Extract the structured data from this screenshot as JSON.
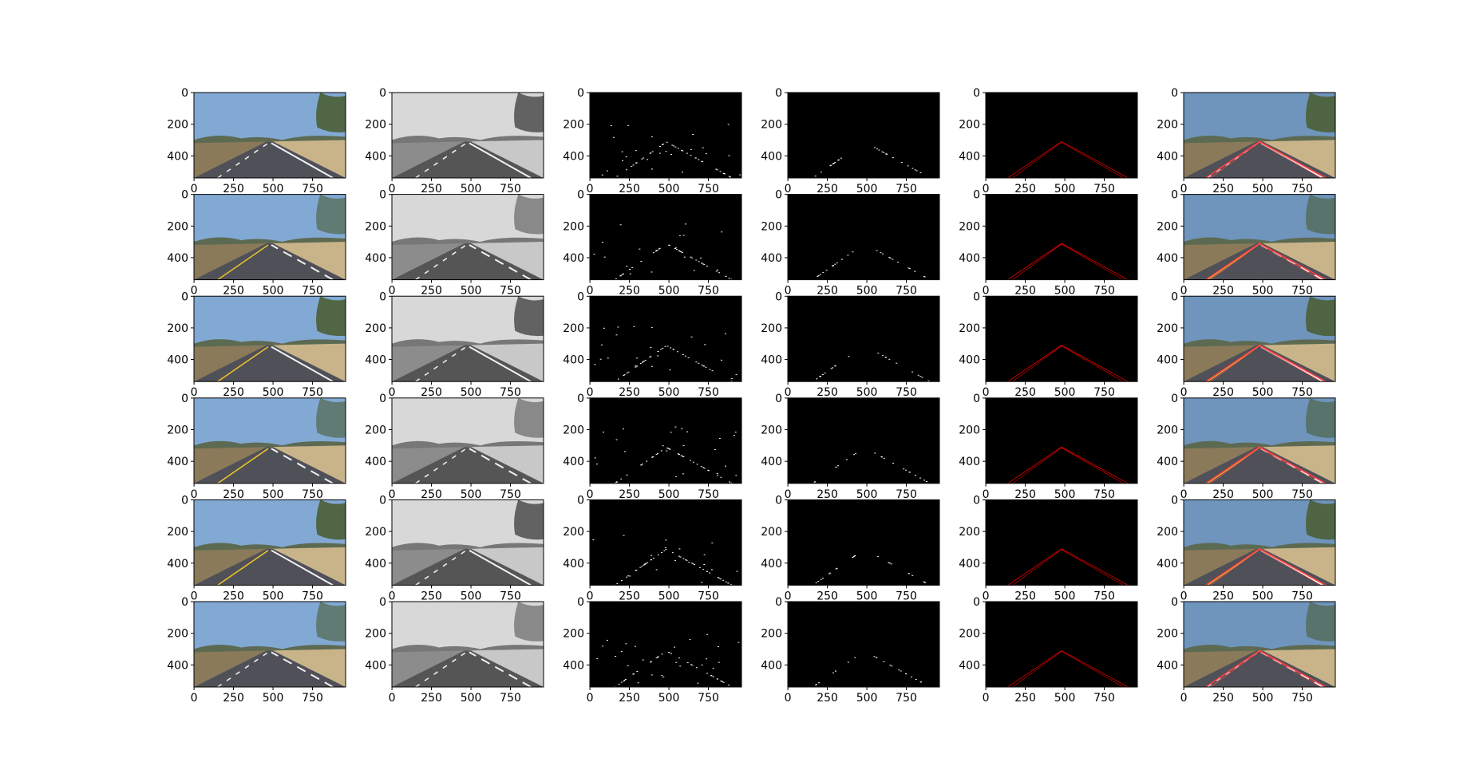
{
  "chart_data": [
    {
      "type": "image",
      "xlim": [
        -0.5,
        959.5
      ],
      "ylim": [
        539.5,
        -0.5
      ],
      "xticks": [
        0,
        250,
        500,
        750
      ],
      "yticks": [
        0,
        200,
        400
      ]
    },
    {
      "type": "image",
      "xlim": [
        -0.5,
        959.5
      ],
      "ylim": [
        539.5,
        -0.5
      ],
      "xticks": [
        0,
        250,
        500,
        750
      ],
      "yticks": [
        0,
        200,
        400
      ]
    },
    {
      "type": "image",
      "xlim": [
        -0.5,
        959.5
      ],
      "ylim": [
        539.5,
        -0.5
      ],
      "xticks": [
        0,
        250,
        500,
        750
      ],
      "yticks": [
        0,
        200,
        400
      ]
    },
    {
      "type": "image",
      "xlim": [
        -0.5,
        959.5
      ],
      "ylim": [
        539.5,
        -0.5
      ],
      "xticks": [
        0,
        250,
        500,
        750
      ],
      "yticks": [
        0,
        200,
        400
      ]
    },
    {
      "type": "image",
      "xlim": [
        -0.5,
        959.5
      ],
      "ylim": [
        539.5,
        -0.5
      ],
      "xticks": [
        0,
        250,
        500,
        750
      ],
      "yticks": [
        0,
        200,
        400
      ]
    },
    {
      "type": "image",
      "xlim": [
        -0.5,
        959.5
      ],
      "ylim": [
        539.5,
        -0.5
      ],
      "xticks": [
        0,
        250,
        500,
        750
      ],
      "yticks": [
        0,
        200,
        400
      ]
    },
    {
      "type": "image",
      "xlim": [
        -0.5,
        959.5
      ],
      "ylim": [
        539.5,
        -0.5
      ],
      "xticks": [
        0,
        250,
        500,
        750
      ],
      "yticks": [
        0,
        200,
        400
      ]
    },
    {
      "type": "image",
      "xlim": [
        -0.5,
        959.5
      ],
      "ylim": [
        539.5,
        -0.5
      ],
      "xticks": [
        0,
        250,
        500,
        750
      ],
      "yticks": [
        0,
        200,
        400
      ]
    },
    {
      "type": "image",
      "xlim": [
        -0.5,
        959.5
      ],
      "ylim": [
        539.5,
        -0.5
      ],
      "xticks": [
        0,
        250,
        500,
        750
      ],
      "yticks": [
        0,
        200,
        400
      ]
    },
    {
      "type": "image",
      "xlim": [
        -0.5,
        959.5
      ],
      "ylim": [
        539.5,
        -0.5
      ],
      "xticks": [
        0,
        250,
        500,
        750
      ],
      "yticks": [
        0,
        200,
        400
      ]
    },
    {
      "type": "image",
      "xlim": [
        -0.5,
        959.5
      ],
      "ylim": [
        539.5,
        -0.5
      ],
      "xticks": [
        0,
        250,
        500,
        750
      ],
      "yticks": [
        0,
        200,
        400
      ]
    },
    {
      "type": "image",
      "xlim": [
        -0.5,
        959.5
      ],
      "ylim": [
        539.5,
        -0.5
      ],
      "xticks": [
        0,
        250,
        500,
        750
      ],
      "yticks": [
        0,
        200,
        400
      ]
    },
    {
      "type": "image",
      "xlim": [
        -0.5,
        959.5
      ],
      "ylim": [
        539.5,
        -0.5
      ],
      "xticks": [
        0,
        250,
        500,
        750
      ],
      "yticks": [
        0,
        200,
        400
      ]
    },
    {
      "type": "image",
      "xlim": [
        -0.5,
        959.5
      ],
      "ylim": [
        539.5,
        -0.5
      ],
      "xticks": [
        0,
        250,
        500,
        750
      ],
      "yticks": [
        0,
        200,
        400
      ]
    },
    {
      "type": "image",
      "xlim": [
        -0.5,
        959.5
      ],
      "ylim": [
        539.5,
        -0.5
      ],
      "xticks": [
        0,
        250,
        500,
        750
      ],
      "yticks": [
        0,
        200,
        400
      ]
    },
    {
      "type": "image",
      "xlim": [
        -0.5,
        959.5
      ],
      "ylim": [
        539.5,
        -0.5
      ],
      "xticks": [
        0,
        250,
        500,
        750
      ],
      "yticks": [
        0,
        200,
        400
      ]
    },
    {
      "type": "image",
      "xlim": [
        -0.5,
        959.5
      ],
      "ylim": [
        539.5,
        -0.5
      ],
      "xticks": [
        0,
        250,
        500,
        750
      ],
      "yticks": [
        0,
        200,
        400
      ]
    },
    {
      "type": "image",
      "xlim": [
        -0.5,
        959.5
      ],
      "ylim": [
        539.5,
        -0.5
      ],
      "xticks": [
        0,
        250,
        500,
        750
      ],
      "yticks": [
        0,
        200,
        400
      ]
    },
    {
      "type": "image",
      "xlim": [
        -0.5,
        959.5
      ],
      "ylim": [
        539.5,
        -0.5
      ],
      "xticks": [
        0,
        250,
        500,
        750
      ],
      "yticks": [
        0,
        200,
        400
      ]
    },
    {
      "type": "image",
      "xlim": [
        -0.5,
        959.5
      ],
      "ylim": [
        539.5,
        -0.5
      ],
      "xticks": [
        0,
        250,
        500,
        750
      ],
      "yticks": [
        0,
        200,
        400
      ]
    },
    {
      "type": "image",
      "xlim": [
        -0.5,
        959.5
      ],
      "ylim": [
        539.5,
        -0.5
      ],
      "xticks": [
        0,
        250,
        500,
        750
      ],
      "yticks": [
        0,
        200,
        400
      ]
    },
    {
      "type": "image",
      "xlim": [
        -0.5,
        959.5
      ],
      "ylim": [
        539.5,
        -0.5
      ],
      "xticks": [
        0,
        250,
        500,
        750
      ],
      "yticks": [
        0,
        200,
        400
      ]
    },
    {
      "type": "image",
      "xlim": [
        -0.5,
        959.5
      ],
      "ylim": [
        539.5,
        -0.5
      ],
      "xticks": [
        0,
        250,
        500,
        750
      ],
      "yticks": [
        0,
        200,
        400
      ]
    },
    {
      "type": "image",
      "xlim": [
        -0.5,
        959.5
      ],
      "ylim": [
        539.5,
        -0.5
      ],
      "xticks": [
        0,
        250,
        500,
        750
      ],
      "yticks": [
        0,
        200,
        400
      ]
    },
    {
      "type": "image",
      "xlim": [
        -0.5,
        959.5
      ],
      "ylim": [
        539.5,
        -0.5
      ],
      "xticks": [
        0,
        250,
        500,
        750
      ],
      "yticks": [
        0,
        200,
        400
      ]
    },
    {
      "type": "image",
      "xlim": [
        -0.5,
        959.5
      ],
      "ylim": [
        539.5,
        -0.5
      ],
      "xticks": [
        0,
        250,
        500,
        750
      ],
      "yticks": [
        0,
        200,
        400
      ]
    },
    {
      "type": "image",
      "xlim": [
        -0.5,
        959.5
      ],
      "ylim": [
        539.5,
        -0.5
      ],
      "xticks": [
        0,
        250,
        500,
        750
      ],
      "yticks": [
        0,
        200,
        400
      ]
    },
    {
      "type": "image",
      "xlim": [
        -0.5,
        959.5
      ],
      "ylim": [
        539.5,
        -0.5
      ],
      "xticks": [
        0,
        250,
        500,
        750
      ],
      "yticks": [
        0,
        200,
        400
      ]
    },
    {
      "type": "image",
      "xlim": [
        -0.5,
        959.5
      ],
      "ylim": [
        539.5,
        -0.5
      ],
      "xticks": [
        0,
        250,
        500,
        750
      ],
      "yticks": [
        0,
        200,
        400
      ]
    },
    {
      "type": "image",
      "xlim": [
        -0.5,
        959.5
      ],
      "ylim": [
        539.5,
        -0.5
      ],
      "xticks": [
        0,
        250,
        500,
        750
      ],
      "yticks": [
        0,
        200,
        400
      ]
    },
    {
      "type": "image",
      "xlim": [
        -0.5,
        959.5
      ],
      "ylim": [
        539.5,
        -0.5
      ],
      "xticks": [
        0,
        250,
        500,
        750
      ],
      "yticks": [
        0,
        200,
        400
      ]
    },
    {
      "type": "image",
      "xlim": [
        -0.5,
        959.5
      ],
      "ylim": [
        539.5,
        -0.5
      ],
      "xticks": [
        0,
        250,
        500,
        750
      ],
      "yticks": [
        0,
        200,
        400
      ]
    },
    {
      "type": "image",
      "xlim": [
        -0.5,
        959.5
      ],
      "ylim": [
        539.5,
        -0.5
      ],
      "xticks": [
        0,
        250,
        500,
        750
      ],
      "yticks": [
        0,
        200,
        400
      ]
    },
    {
      "type": "image",
      "xlim": [
        -0.5,
        959.5
      ],
      "ylim": [
        539.5,
        -0.5
      ],
      "xticks": [
        0,
        250,
        500,
        750
      ],
      "yticks": [
        0,
        200,
        400
      ]
    },
    {
      "type": "image",
      "xlim": [
        -0.5,
        959.5
      ],
      "ylim": [
        539.5,
        -0.5
      ],
      "xticks": [
        0,
        250,
        500,
        750
      ],
      "yticks": [
        0,
        200,
        400
      ]
    },
    {
      "type": "image",
      "xlim": [
        -0.5,
        959.5
      ],
      "ylim": [
        539.5,
        -0.5
      ],
      "xticks": [
        0,
        250,
        500,
        750
      ],
      "yticks": [
        0,
        200,
        400
      ]
    }
  ]
}
